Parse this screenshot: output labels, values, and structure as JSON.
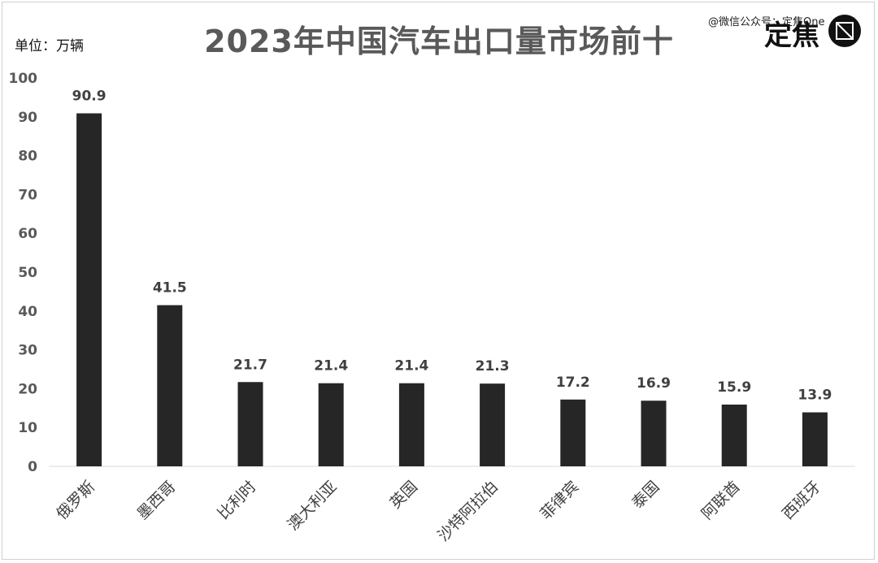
{
  "chart_data": {
    "type": "bar",
    "title": "2023年中国汽车出口量市场前十",
    "unit_label": "单位：万辆",
    "categories": [
      "俄罗斯",
      "墨西哥",
      "比利时",
      "澳大利亚",
      "英国",
      "沙特阿拉伯",
      "菲律宾",
      "泰国",
      "阿联酋",
      "西班牙"
    ],
    "values": [
      90.9,
      41.5,
      21.7,
      21.4,
      21.4,
      21.3,
      17.2,
      16.9,
      15.9,
      13.9
    ],
    "data_labels": [
      "90.9",
      "41.5",
      "21.7",
      "21.4",
      "21.4",
      "21.3",
      "17.2",
      "16.9",
      "15.9",
      "13.9"
    ],
    "ylim": [
      0,
      100
    ],
    "yticks": [
      "0",
      "10",
      "20",
      "30",
      "40",
      "50",
      "60",
      "70",
      "80",
      "90",
      "100"
    ],
    "grid": false,
    "bar_color": "#262626"
  },
  "watermark": "@微信公众号：定焦One",
  "logo": {
    "text": "定焦",
    "icon": "circle-square-logo-icon"
  }
}
